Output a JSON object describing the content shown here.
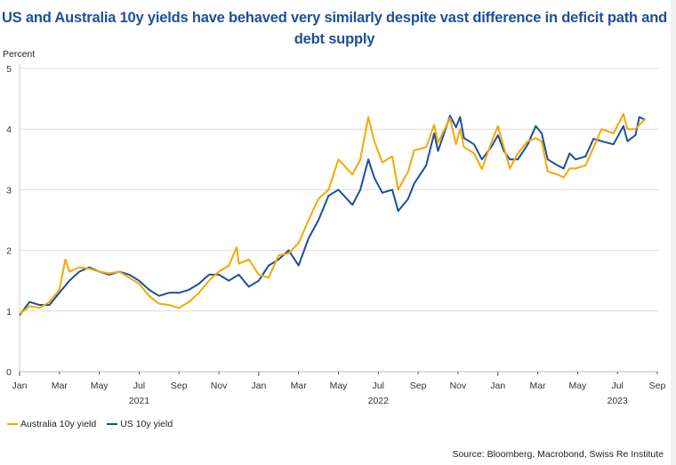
{
  "chart_data": {
    "type": "line",
    "title": "US and Australia 10y yields have behaved very similarly despite vast difference in deficit path and debt supply",
    "ylabel": "Percent",
    "xlabel": "",
    "ylim": [
      0,
      5
    ],
    "yticks": [
      0,
      1,
      2,
      3,
      4,
      5
    ],
    "x_unit": "months since Jan 2021",
    "xlim": [
      0,
      32
    ],
    "xticks": [
      {
        "m": 0,
        "label": "Jan"
      },
      {
        "m": 2,
        "label": "Mar"
      },
      {
        "m": 4,
        "label": "May"
      },
      {
        "m": 6,
        "label": "Jul"
      },
      {
        "m": 8,
        "label": "Sep"
      },
      {
        "m": 10,
        "label": "Nov"
      },
      {
        "m": 12,
        "label": "Jan"
      },
      {
        "m": 14,
        "label": "Mar"
      },
      {
        "m": 16,
        "label": "May"
      },
      {
        "m": 18,
        "label": "Jul"
      },
      {
        "m": 20,
        "label": "Sep"
      },
      {
        "m": 22,
        "label": "Nov"
      },
      {
        "m": 24,
        "label": "Jan"
      },
      {
        "m": 26,
        "label": "Mar"
      },
      {
        "m": 28,
        "label": "May"
      },
      {
        "m": 30,
        "label": "Jul"
      },
      {
        "m": 32,
        "label": "Sep"
      }
    ],
    "years": [
      {
        "m": 6,
        "label": "2021"
      },
      {
        "m": 18,
        "label": "2022"
      },
      {
        "m": 30,
        "label": "2023"
      }
    ],
    "grid": true,
    "legend_position": "bottom-left",
    "series": [
      {
        "name": "Australia 10y yield",
        "color": "#f5a800",
        "x": [
          0,
          0.5,
          1,
          1.5,
          2,
          2.3,
          2.5,
          3,
          3.5,
          4,
          4.5,
          5,
          5.5,
          6,
          6.5,
          7,
          7.5,
          8,
          8.5,
          9,
          9.5,
          10,
          10.5,
          10.9,
          11,
          11.5,
          12,
          12.5,
          13,
          13.5,
          14,
          14.5,
          15,
          15.5,
          16,
          16.7,
          17.1,
          17.5,
          17.8,
          18.2,
          18.7,
          19.0,
          19.5,
          19.8,
          20.4,
          20.8,
          21.0,
          21.6,
          21.9,
          22.1,
          22.3,
          22.8,
          23.2,
          23.7,
          24.0,
          24.3,
          24.6,
          25.0,
          25.5,
          25.9,
          26.2,
          26.5,
          27.0,
          27.3,
          27.6,
          27.9,
          28.4,
          28.8,
          29.2,
          29.8,
          30.3,
          30.5,
          30.9,
          31.1,
          31.4
        ],
        "values": [
          0.95,
          1.08,
          1.05,
          1.15,
          1.35,
          1.85,
          1.65,
          1.72,
          1.7,
          1.65,
          1.62,
          1.65,
          1.55,
          1.45,
          1.25,
          1.12,
          1.1,
          1.05,
          1.15,
          1.3,
          1.5,
          1.65,
          1.75,
          2.05,
          1.78,
          1.85,
          1.6,
          1.55,
          1.92,
          1.95,
          2.12,
          2.5,
          2.85,
          3.0,
          3.5,
          3.25,
          3.5,
          4.2,
          3.8,
          3.45,
          3.55,
          3.0,
          3.3,
          3.65,
          3.7,
          4.07,
          3.78,
          4.18,
          3.75,
          4.0,
          3.7,
          3.6,
          3.34,
          3.8,
          4.05,
          3.7,
          3.35,
          3.6,
          3.8,
          3.85,
          3.8,
          3.3,
          3.25,
          3.2,
          3.35,
          3.35,
          3.4,
          3.7,
          4.0,
          3.93,
          4.25,
          4.0,
          4.0,
          4.07,
          4.17
        ]
      },
      {
        "name": "US 10y yield",
        "color": "#1a4fa0",
        "x": [
          0,
          0.5,
          1,
          1.5,
          2,
          2.5,
          3,
          3.5,
          4,
          4.5,
          5,
          5.5,
          6,
          6.5,
          7,
          7.5,
          8,
          8.5,
          9,
          9.5,
          10,
          10.5,
          11,
          11.5,
          12,
          12.5,
          13,
          13.5,
          14,
          14.5,
          15,
          15.5,
          16,
          16.7,
          17.1,
          17.5,
          17.8,
          18.2,
          18.7,
          19.0,
          19.5,
          19.8,
          20.4,
          20.8,
          21.0,
          21.6,
          21.9,
          22.1,
          22.3,
          22.8,
          23.2,
          23.7,
          24.0,
          24.3,
          24.6,
          25.0,
          25.5,
          25.9,
          26.2,
          26.5,
          27.0,
          27.3,
          27.6,
          27.9,
          28.4,
          28.8,
          29.2,
          29.8,
          30.3,
          30.5,
          30.9,
          31.1,
          31.4
        ],
        "values": [
          0.93,
          1.15,
          1.1,
          1.1,
          1.3,
          1.5,
          1.65,
          1.72,
          1.65,
          1.6,
          1.65,
          1.6,
          1.5,
          1.35,
          1.25,
          1.3,
          1.3,
          1.35,
          1.45,
          1.6,
          1.6,
          1.5,
          1.6,
          1.4,
          1.5,
          1.75,
          1.85,
          2.0,
          1.75,
          2.2,
          2.5,
          2.9,
          3.0,
          2.75,
          3.0,
          3.5,
          3.2,
          2.95,
          3.0,
          2.65,
          2.85,
          3.1,
          3.4,
          3.93,
          3.64,
          4.22,
          4.03,
          4.2,
          3.85,
          3.75,
          3.5,
          3.72,
          3.9,
          3.64,
          3.5,
          3.5,
          3.75,
          4.05,
          3.93,
          3.5,
          3.4,
          3.35,
          3.6,
          3.5,
          3.55,
          3.84,
          3.8,
          3.75,
          4.05,
          3.8,
          3.9,
          4.2,
          4.15
        ]
      }
    ],
    "source": "Source: Bloomberg, Macrobond, Swiss Re Institute"
  }
}
